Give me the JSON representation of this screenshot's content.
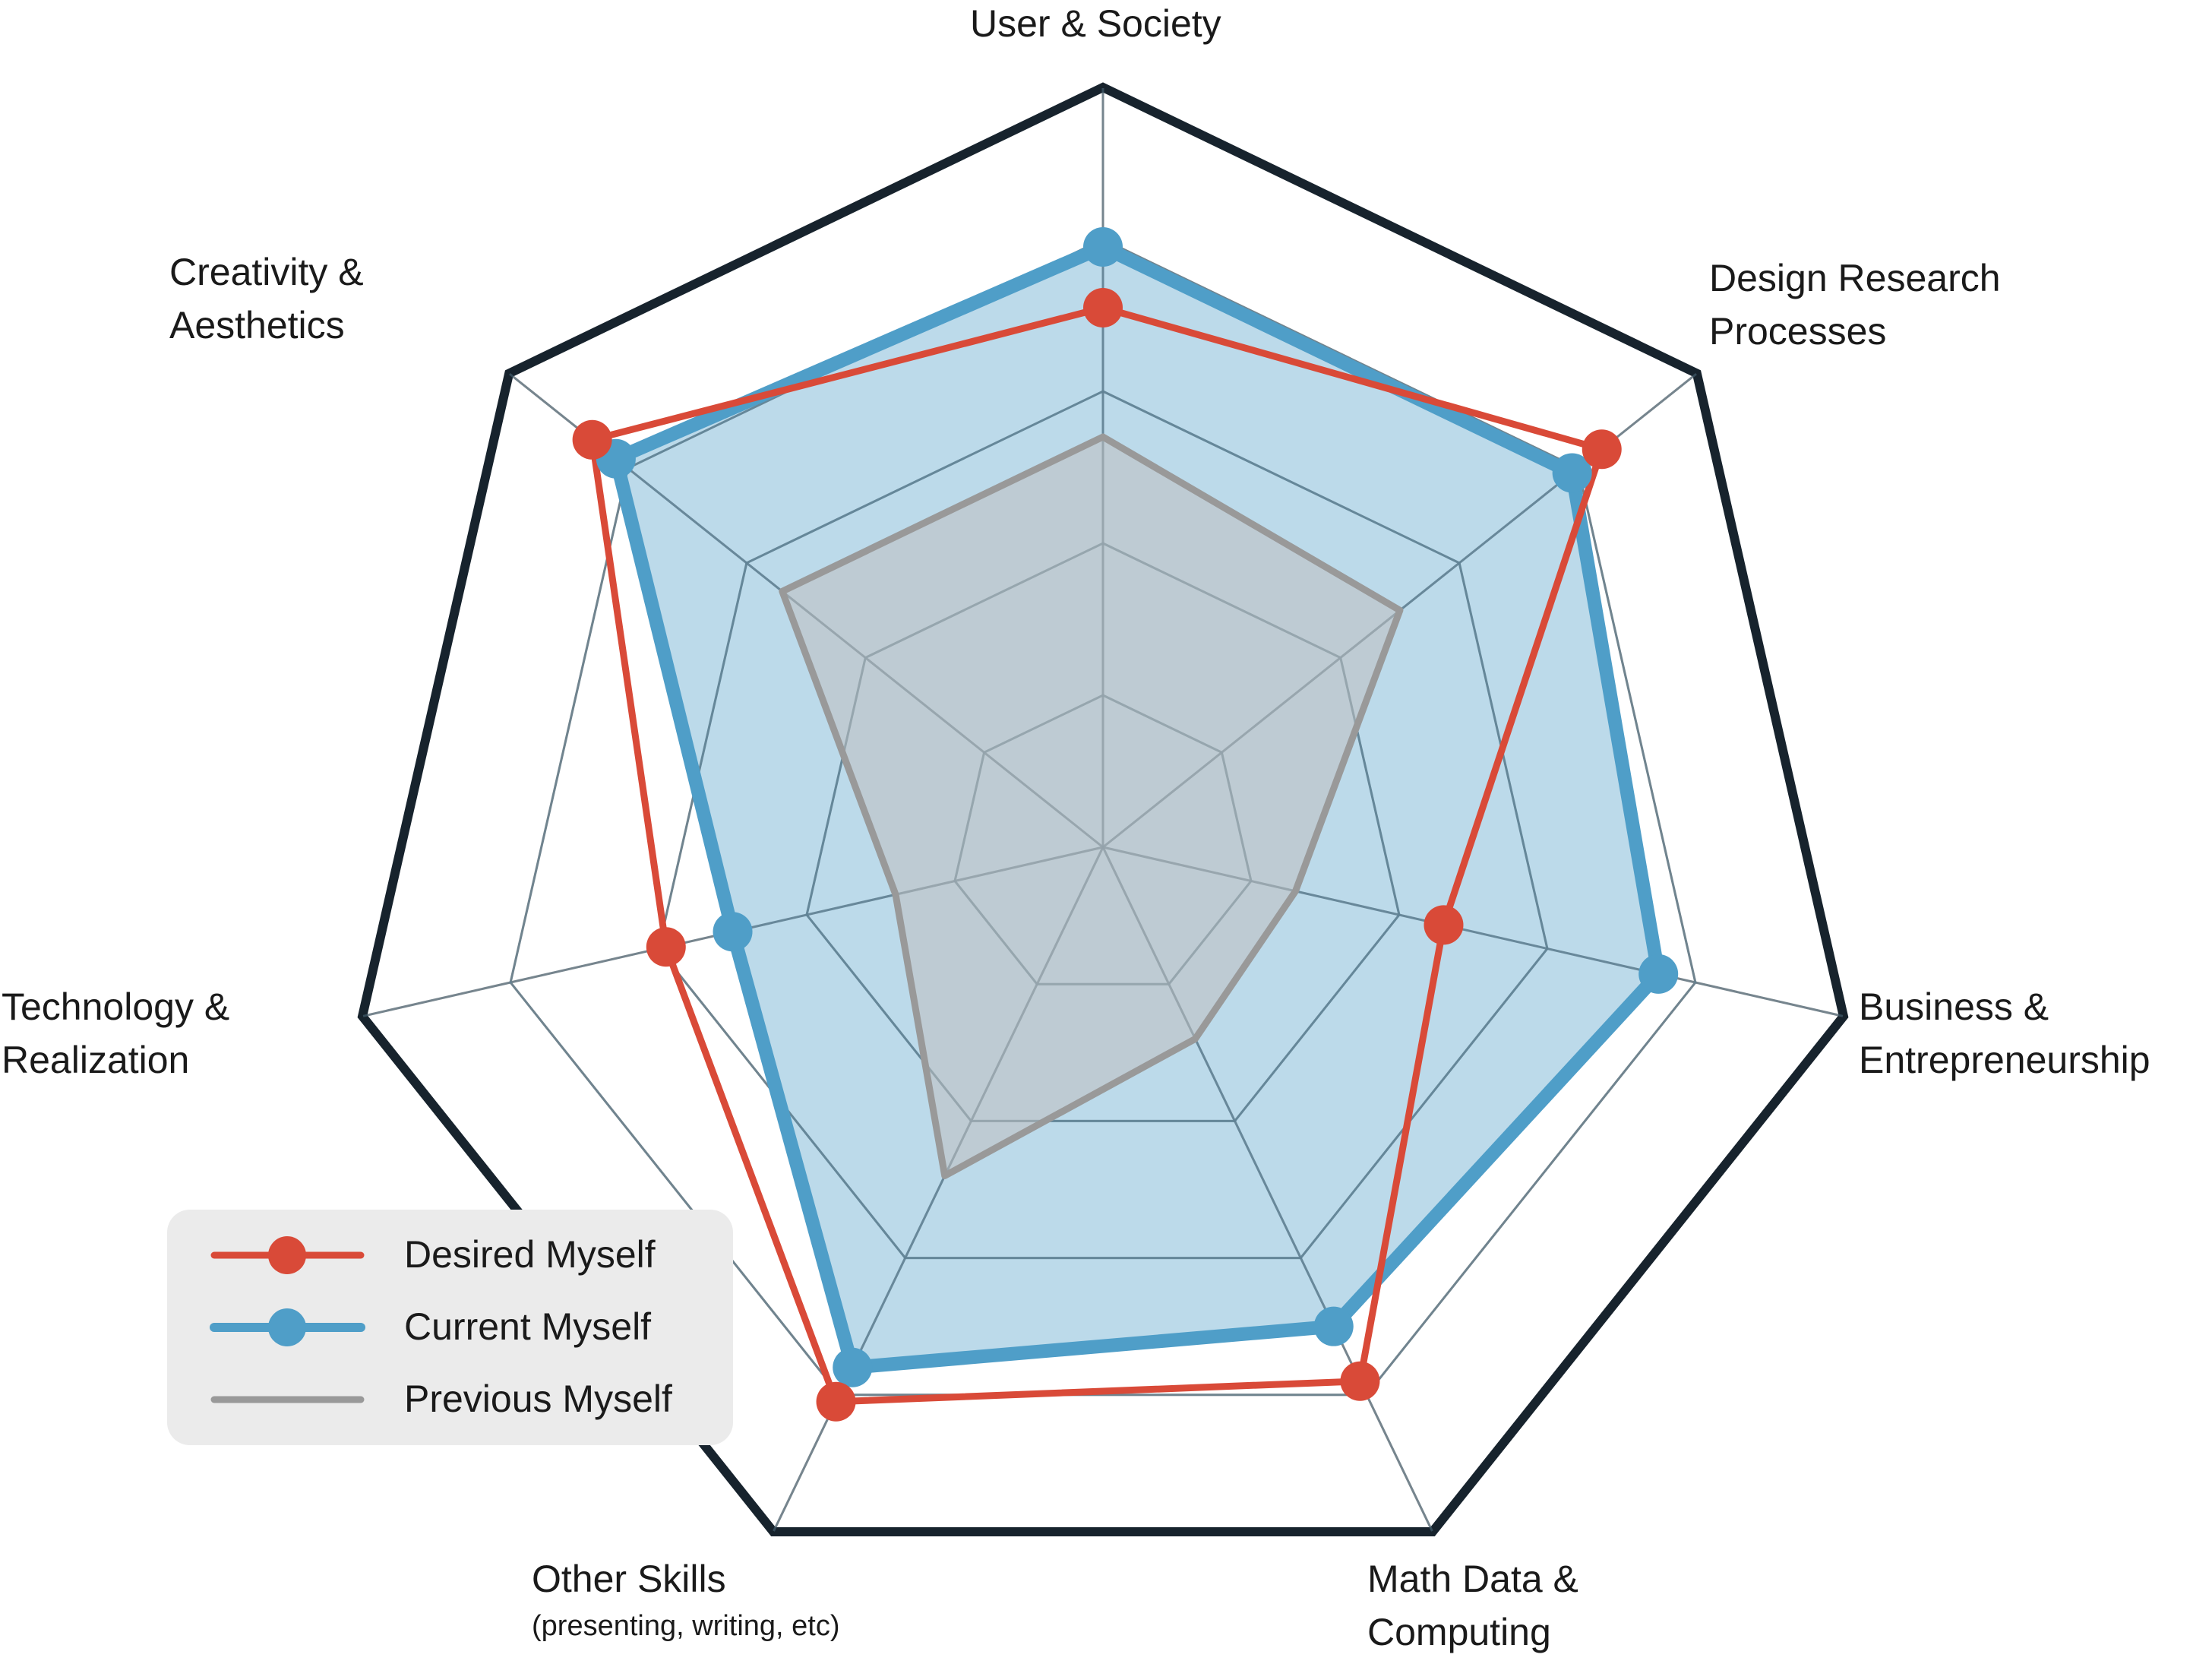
{
  "chart_data": {
    "type": "radar",
    "axes": [
      {
        "label": "User & Society",
        "sublabel": ""
      },
      {
        "label": "Design Research\nProcesses",
        "sublabel": ""
      },
      {
        "label": "Business &\nEntrepreneurship",
        "sublabel": ""
      },
      {
        "label": "Math Data &\nComputing",
        "sublabel": ""
      },
      {
        "label": "Other Skills",
        "sublabel": "(presenting, writing, etc)"
      },
      {
        "label": "Technology &\nRealization",
        "sublabel": ""
      },
      {
        "label": "Creativity &\nAesthetics",
        "sublabel": ""
      }
    ],
    "max": 5,
    "grid_levels": [
      1,
      2,
      3,
      4,
      5
    ],
    "series": [
      {
        "name": "Previous Myself",
        "values": [
          2.7,
          2.5,
          1.3,
          1.4,
          2.4,
          1.4,
          2.7
        ],
        "color": "#999999",
        "fill": "#bfbfbf",
        "markers": false
      },
      {
        "name": "Current Myself",
        "values": [
          3.95,
          3.95,
          3.75,
          3.5,
          3.8,
          2.5,
          4.1
        ],
        "color": "#4f9ec8",
        "fill": "#4f9ec8",
        "markers": true
      },
      {
        "name": "Desired Myself",
        "values": [
          3.55,
          4.2,
          2.3,
          3.9,
          4.05,
          2.95,
          4.3
        ],
        "color": "#d94a38",
        "fill": "none",
        "markers": true
      }
    ],
    "legend": {
      "position": "bottom-left",
      "order": [
        "Desired Myself",
        "Current Myself",
        "Previous Myself"
      ]
    }
  }
}
